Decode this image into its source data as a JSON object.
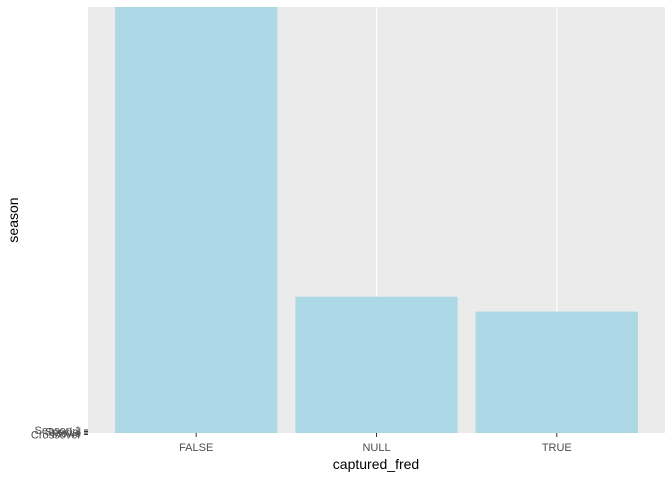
{
  "chart_data": {
    "type": "bar",
    "xlabel": "captured_fred",
    "ylabel": "season",
    "categories": [
      "FALSE",
      "NULL",
      "TRUE"
    ],
    "values": [
      100,
      32,
      28.5
    ],
    "ylim": [
      0,
      100
    ],
    "y_tick_labels": [
      "Crossover",
      "Movie",
      "Special",
      "Season 1"
    ],
    "grid": true,
    "legend": "none",
    "colors": {
      "bar": "#add8e6",
      "panel": "#ebebeb",
      "grid": "#ffffff",
      "tick": "#333333"
    }
  }
}
